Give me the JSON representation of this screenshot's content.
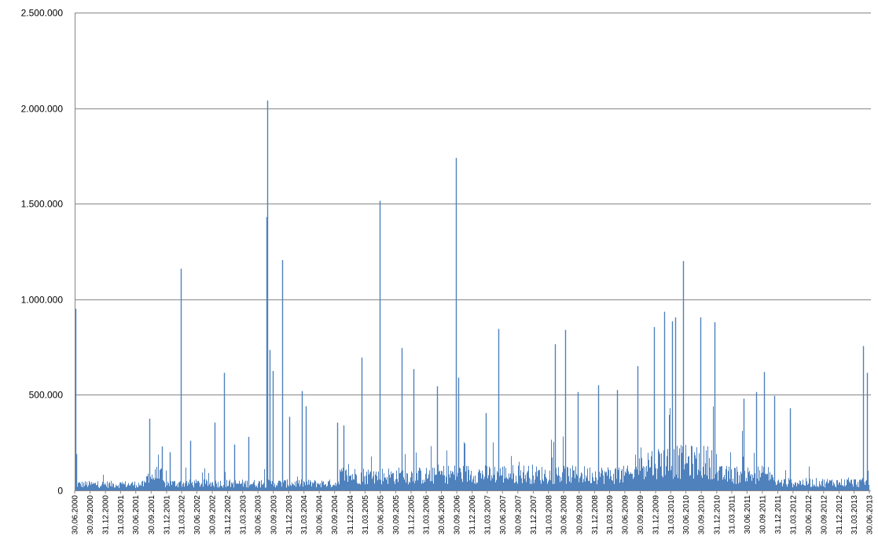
{
  "chart_data": {
    "type": "bar",
    "title": "",
    "xlabel": "",
    "ylabel": "",
    "ylim": [
      0,
      2500000
    ],
    "grid": true,
    "legend": "none",
    "bar_color": "#4f81bd",
    "y_ticks": [
      {
        "value": 0,
        "label": "0"
      },
      {
        "value": 500000,
        "label": "500.000"
      },
      {
        "value": 1000000,
        "label": "1.000.000"
      },
      {
        "value": 1500000,
        "label": "1.500.000"
      },
      {
        "value": 2000000,
        "label": "2.000.000"
      },
      {
        "value": 2500000,
        "label": "2.500.000"
      }
    ],
    "x_range": [
      "2000-06-30",
      "2013-06-30"
    ],
    "x_tick_labels": [
      "30.06.2000",
      "30.09.2000",
      "31.12.2000",
      "31.03.2001",
      "30.06.2001",
      "30.09.2001",
      "31.12.2001",
      "31.03.2002",
      "30.06.2002",
      "30.09.2002",
      "31.12.2002",
      "31.03.2003",
      "30.06.2003",
      "30.09.2003",
      "31.12.2003",
      "31.03.2004",
      "30.06.2004",
      "30.09.2004",
      "31.12.2004",
      "31.03.2005",
      "30.06.2005",
      "30.09.2005",
      "31.12.2005",
      "31.03.2006",
      "30.06.2006",
      "30.09.2006",
      "31.12.2006",
      "31.03.2007",
      "30.06.2007",
      "30.09.2007",
      "31.12.2007",
      "31.03.2008",
      "30.06.2008",
      "30.09.2008",
      "31.12.2008",
      "31.03.2009",
      "30.06.2009",
      "30.09.2009",
      "31.12.2009",
      "31.03.2010",
      "30.06.2010",
      "30.09.2010",
      "31.12.2010",
      "31.03.2011",
      "30.06.2011",
      "30.09.2011",
      "31.12.2011",
      "31.03.2012",
      "30.06.2012",
      "30.09.2012",
      "31.12.2012",
      "31.03.2013",
      "30.06.2013"
    ],
    "peaks": [
      {
        "x": "2000-07-03",
        "y": 950000
      },
      {
        "x": "2000-07-10",
        "y": 190000
      },
      {
        "x": "2001-09-20",
        "y": 375000
      },
      {
        "x": "2001-12-05",
        "y": 230000
      },
      {
        "x": "2002-01-20",
        "y": 200000
      },
      {
        "x": "2002-03-25",
        "y": 1160000
      },
      {
        "x": "2002-05-20",
        "y": 260000
      },
      {
        "x": "2002-10-15",
        "y": 355000
      },
      {
        "x": "2002-12-10",
        "y": 615000
      },
      {
        "x": "2003-02-10",
        "y": 240000
      },
      {
        "x": "2003-05-05",
        "y": 280000
      },
      {
        "x": "2003-08-20",
        "y": 1430000
      },
      {
        "x": "2003-08-25",
        "y": 2040000
      },
      {
        "x": "2003-09-10",
        "y": 735000
      },
      {
        "x": "2003-09-25",
        "y": 625000
      },
      {
        "x": "2003-11-20",
        "y": 1205000
      },
      {
        "x": "2004-01-05",
        "y": 385000
      },
      {
        "x": "2004-03-20",
        "y": 520000
      },
      {
        "x": "2004-04-10",
        "y": 440000
      },
      {
        "x": "2004-10-15",
        "y": 355000
      },
      {
        "x": "2004-11-20",
        "y": 340000
      },
      {
        "x": "2005-03-10",
        "y": 695000
      },
      {
        "x": "2005-06-25",
        "y": 1515000
      },
      {
        "x": "2005-11-05",
        "y": 745000
      },
      {
        "x": "2006-01-15",
        "y": 635000
      },
      {
        "x": "2006-06-05",
        "y": 545000
      },
      {
        "x": "2006-09-25",
        "y": 1740000
      },
      {
        "x": "2006-10-10",
        "y": 590000
      },
      {
        "x": "2007-03-20",
        "y": 405000
      },
      {
        "x": "2007-06-05",
        "y": 845000
      },
      {
        "x": "2008-05-10",
        "y": 765000
      },
      {
        "x": "2008-07-10",
        "y": 840000
      },
      {
        "x": "2008-09-20",
        "y": 515000
      },
      {
        "x": "2009-01-20",
        "y": 550000
      },
      {
        "x": "2009-05-15",
        "y": 525000
      },
      {
        "x": "2009-09-15",
        "y": 650000
      },
      {
        "x": "2009-12-20",
        "y": 855000
      },
      {
        "x": "2010-02-20",
        "y": 935000
      },
      {
        "x": "2010-04-10",
        "y": 885000
      },
      {
        "x": "2010-04-25",
        "y": 905000
      },
      {
        "x": "2010-06-15",
        "y": 1200000
      },
      {
        "x": "2010-09-25",
        "y": 905000
      },
      {
        "x": "2010-12-20",
        "y": 880000
      },
      {
        "x": "2011-06-10",
        "y": 480000
      },
      {
        "x": "2011-08-25",
        "y": 515000
      },
      {
        "x": "2011-10-10",
        "y": 620000
      },
      {
        "x": "2011-12-10",
        "y": 495000
      },
      {
        "x": "2012-03-15",
        "y": 430000
      },
      {
        "x": "2013-05-25",
        "y": 755000
      },
      {
        "x": "2013-06-15",
        "y": 615000
      }
    ]
  }
}
